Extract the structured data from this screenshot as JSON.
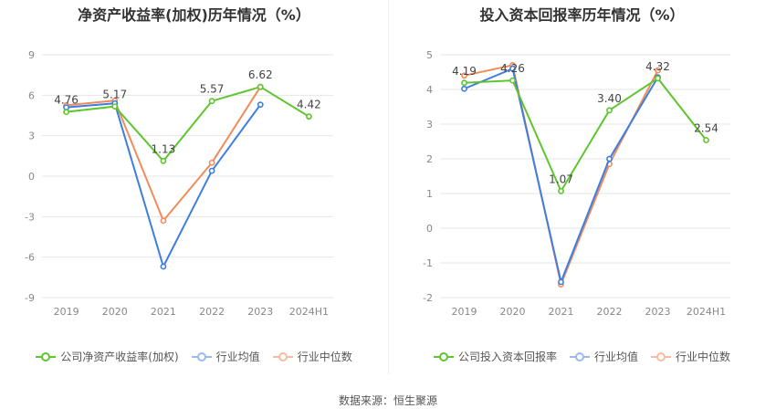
{
  "source": "数据来源：恒生聚源",
  "chart_data": [
    {
      "type": "line",
      "title": "净资产收益率(加权)历年情况（%）",
      "categories": [
        "2019",
        "2020",
        "2021",
        "2022",
        "2023",
        "2024H1"
      ],
      "ylim": [
        -9,
        9
      ],
      "yticks": [
        9,
        6,
        3,
        0,
        -3,
        -6,
        -9
      ],
      "grid": true,
      "legend_position": "bottom",
      "series": [
        {
          "name": "公司净资产收益率(加权)",
          "color": "#5ec52e",
          "values": [
            4.76,
            5.17,
            1.13,
            5.57,
            6.62,
            4.42
          ],
          "labels": [
            "4.76",
            "5.17",
            "1.13",
            "5.57",
            "6.62",
            "4.42"
          ]
        },
        {
          "name": "行业均值",
          "color": "#3f7de0",
          "values": [
            5.1,
            5.4,
            -6.7,
            0.4,
            5.3,
            null
          ]
        },
        {
          "name": "行业中位数",
          "color": "#f08c5c",
          "values": [
            5.25,
            5.6,
            -3.3,
            1.0,
            6.62,
            null
          ]
        }
      ]
    },
    {
      "type": "line",
      "title": "投入资本回报率历年情况（%）",
      "categories": [
        "2019",
        "2020",
        "2021",
        "2022",
        "2023",
        "2024H1"
      ],
      "ylim": [
        -2,
        5
      ],
      "yticks": [
        5,
        4,
        3,
        2,
        1,
        0,
        -1,
        -2
      ],
      "grid": true,
      "legend_position": "bottom",
      "series": [
        {
          "name": "公司投入资本回报率",
          "color": "#5ec52e",
          "values": [
            4.19,
            4.26,
            1.07,
            3.4,
            4.32,
            2.54
          ],
          "labels": [
            "4.19",
            "4.26",
            "1.07",
            "3.40",
            "4.32",
            "2.54"
          ]
        },
        {
          "name": "行业均值",
          "color": "#3f7de0",
          "values": [
            4.02,
            4.6,
            -1.55,
            2.0,
            4.35,
            null
          ]
        },
        {
          "name": "行业中位数",
          "color": "#f08c5c",
          "values": [
            4.4,
            4.7,
            -1.62,
            1.85,
            4.55,
            null
          ]
        }
      ]
    }
  ]
}
